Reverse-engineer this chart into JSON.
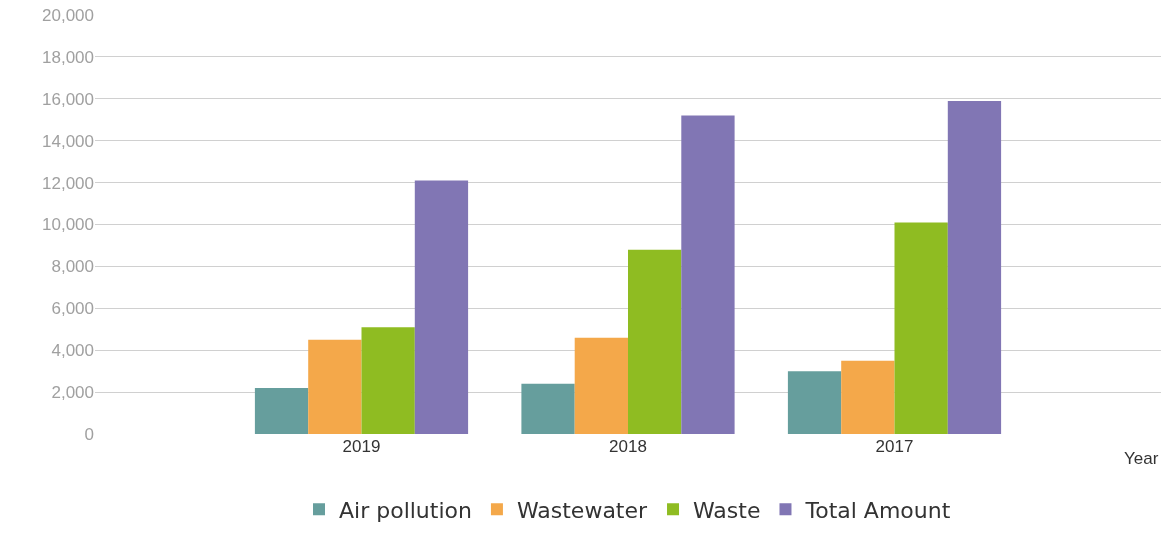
{
  "chart_data": {
    "type": "bar",
    "xlabel": "Year",
    "categories": [
      "2019",
      "2018",
      "2017"
    ],
    "series": [
      {
        "name": "Air pollution",
        "color": "#669e9d",
        "values": [
          2200,
          2400,
          3000
        ]
      },
      {
        "name": "Wastewater",
        "color": "#f4a84a",
        "values": [
          4500,
          4600,
          3500
        ]
      },
      {
        "name": "Waste",
        "color": "#8fbc22",
        "values": [
          5100,
          8800,
          10100
        ]
      },
      {
        "name": "Total Amount",
        "color": "#8176b4",
        "values": [
          12100,
          15200,
          15900
        ]
      }
    ],
    "ylim": [
      0,
      20000
    ],
    "yticks": [
      {
        "value": 0,
        "label": "0"
      },
      {
        "value": 2000,
        "label": "2,000"
      },
      {
        "value": 4000,
        "label": "4,000"
      },
      {
        "value": 6000,
        "label": "6,000"
      },
      {
        "value": 8000,
        "label": "8,000"
      },
      {
        "value": 10000,
        "label": "10,000"
      },
      {
        "value": 12000,
        "label": "12,000"
      },
      {
        "value": 14000,
        "label": "14,000"
      },
      {
        "value": 16000,
        "label": "16,000"
      },
      {
        "value": 18000,
        "label": "18,000"
      },
      {
        "value": 20000,
        "label": "20,000"
      }
    ],
    "grid": "y",
    "legend": "bottom"
  }
}
